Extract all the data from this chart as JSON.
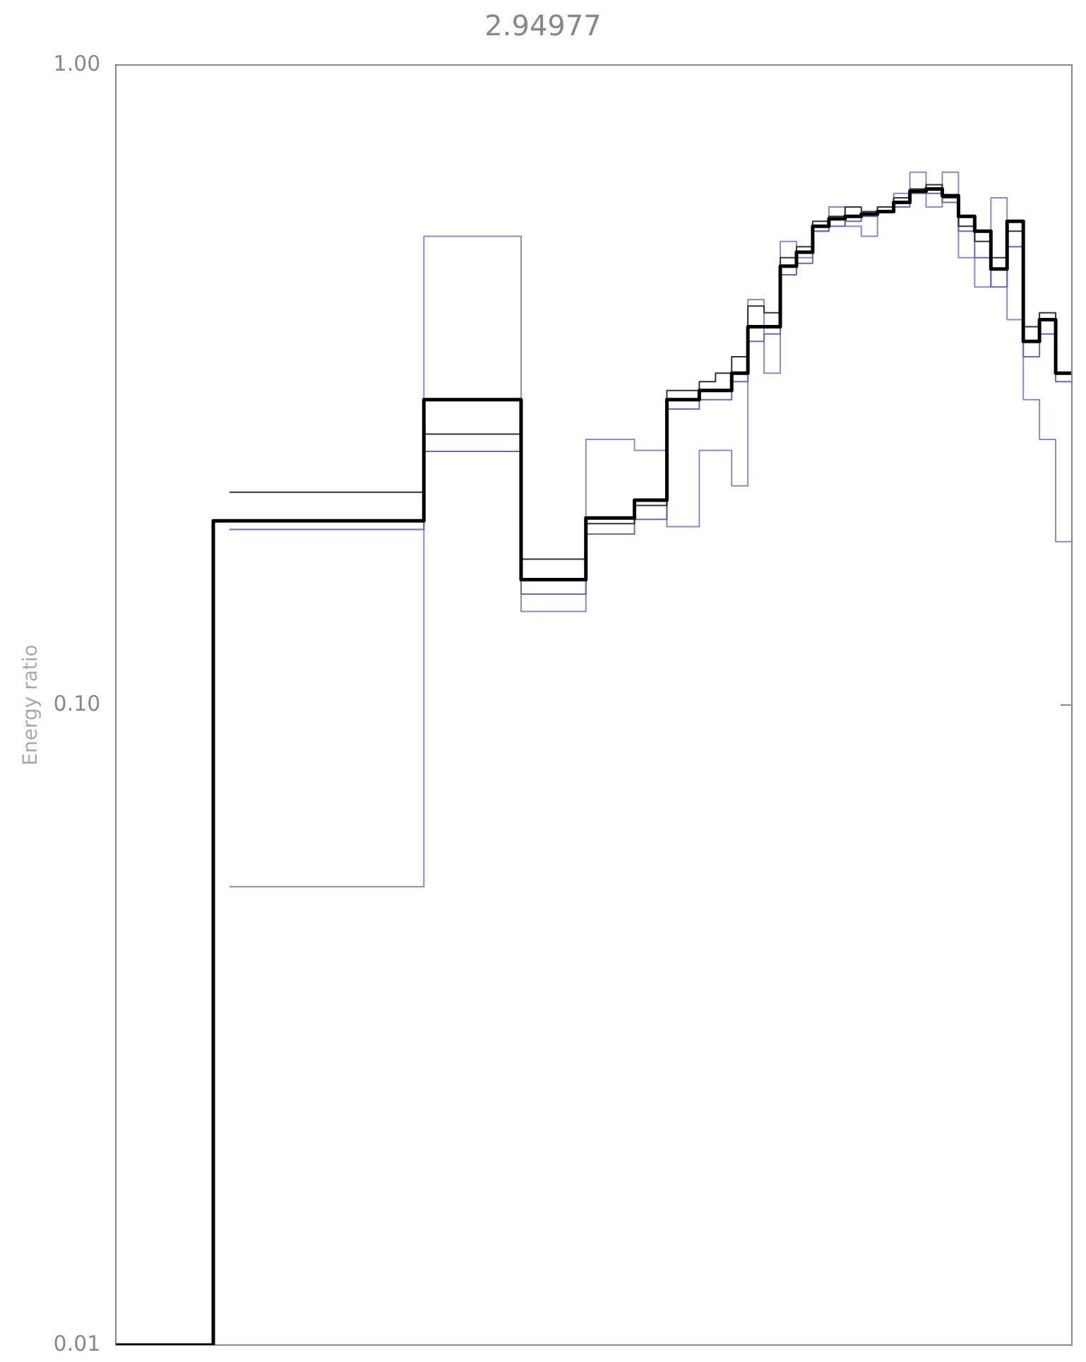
{
  "chart_data": {
    "type": "step",
    "title": "2.94977",
    "ylabel": "Energy ratio",
    "log": "y",
    "ylim": [
      0.01,
      1
    ],
    "yticks": [
      0.01,
      {
        "value": 0.1,
        "label": "0.10"
      },
      {
        "value": 1,
        "label": "1.00"
      }
    ],
    "tick_labels": "y",
    "grid": false,
    "legend": false,
    "marker": "none",
    "categories": [
      null,
      null,
      null,
      null,
      null,
      null,
      null,
      null,
      null,
      null,
      null,
      null,
      null,
      null,
      null,
      null,
      null,
      null,
      null,
      null,
      null,
      null,
      null,
      null,
      null,
      null,
      null,
      null,
      null,
      null,
      null,
      null,
      null,
      null,
      null,
      null,
      null,
      null,
      null,
      null,
      null,
      null,
      null,
      null,
      null,
      null,
      null,
      null,
      null,
      null,
      null,
      null,
      null,
      null,
      null,
      null,
      null,
      null,
      null,
      null
    ],
    "series": [
      {
        "color": "#000000",
        "values": [
          0.01,
          0.01,
          0.01,
          0.01,
          0.01,
          0.01,
          0.01,
          0.194,
          0.194,
          0.194,
          0.194,
          0.194,
          0.194,
          0.194,
          0.194,
          0.194,
          0.194,
          0.194,
          0.194,
          0.194,
          0.3,
          0.3,
          0.3,
          0.3,
          0.3,
          0.3,
          0.157,
          0.157,
          0.157,
          0.157,
          0.196,
          0.196,
          0.196,
          0.209,
          0.209,
          0.3,
          0.3,
          0.31,
          0.31,
          0.33,
          0.39,
          0.39,
          0.485,
          0.51,
          0.56,
          0.575,
          0.58,
          0.585,
          0.59,
          0.61,
          0.635,
          0.64,
          0.625,
          0.58,
          0.55,
          0.48,
          0.57,
          0.37,
          0.4,
          0.33
        ]
      },
      {
        "color": "#333333",
        "values": [
          null,
          null,
          null,
          null,
          null,
          null,
          null,
          0.215,
          0.215,
          0.215,
          0.215,
          0.215,
          0.215,
          0.215,
          0.215,
          0.215,
          0.215,
          0.215,
          0.215,
          0.215,
          0.265,
          0.265,
          0.265,
          0.265,
          0.265,
          0.265,
          0.169,
          0.169,
          0.169,
          0.169,
          0.192,
          0.192,
          0.192,
          0.205,
          0.205,
          0.31,
          0.31,
          0.32,
          0.33,
          0.35,
          0.42,
          0.41,
          0.5,
          0.52,
          0.57,
          0.58,
          0.6,
          0.59,
          0.6,
          0.62,
          0.64,
          0.65,
          0.62,
          0.56,
          0.53,
          0.5,
          0.55,
          0.39,
          0.41,
          0.33
        ]
      },
      {
        "color": "#6a6ab0",
        "values": [
          null,
          null,
          null,
          null,
          null,
          null,
          null,
          0.188,
          0.188,
          0.188,
          0.188,
          0.188,
          0.188,
          0.188,
          0.188,
          0.188,
          0.188,
          0.188,
          0.188,
          0.188,
          0.249,
          0.249,
          0.249,
          0.249,
          0.249,
          0.249,
          0.149,
          0.149,
          0.149,
          0.149,
          0.185,
          0.185,
          0.185,
          0.195,
          0.195,
          0.29,
          0.29,
          0.3,
          0.3,
          0.32,
          0.37,
          0.38,
          0.47,
          0.49,
          0.55,
          0.56,
          0.57,
          0.58,
          0.59,
          0.6,
          0.63,
          0.63,
          0.61,
          0.55,
          0.5,
          0.45,
          0.52,
          0.35,
          0.38,
          0.32
        ]
      },
      {
        "color": "#8a8ac8",
        "values": [
          null,
          null,
          null,
          null,
          null,
          null,
          null,
          0.052,
          0.052,
          0.052,
          0.052,
          0.052,
          0.052,
          0.052,
          0.052,
          0.052,
          0.052,
          0.052,
          0.052,
          0.052,
          0.54,
          0.54,
          0.54,
          0.54,
          0.54,
          0.54,
          0.14,
          0.14,
          0.14,
          0.14,
          0.26,
          0.26,
          0.26,
          0.25,
          0.25,
          0.19,
          0.19,
          0.25,
          0.25,
          0.22,
          0.43,
          0.33,
          0.53,
          0.5,
          0.55,
          0.6,
          0.56,
          0.54,
          0.6,
          0.63,
          0.68,
          0.6,
          0.68,
          0.5,
          0.45,
          0.62,
          0.4,
          0.3,
          0.26,
          0.18
        ]
      }
    ]
  }
}
